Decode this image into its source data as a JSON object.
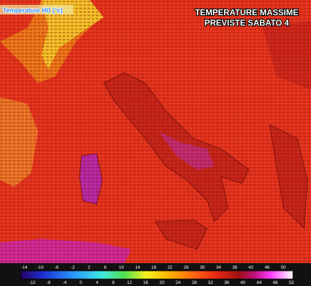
{
  "header": {
    "source": "Temperature HD (°c)",
    "title": "TEMPERATURE MASSIME",
    "subtitle": "PREVISTE SABATO 4"
  },
  "legend": {
    "labels_top": [
      -14,
      -10,
      -6,
      -2,
      2,
      6,
      10,
      14,
      18,
      22,
      26,
      30,
      34,
      38,
      42,
      46,
      50
    ],
    "labels_bottom": [
      -12,
      -8,
      -4,
      0,
      4,
      8,
      12,
      16,
      20,
      24,
      28,
      32,
      36,
      40,
      44,
      48,
      52
    ]
  }
}
